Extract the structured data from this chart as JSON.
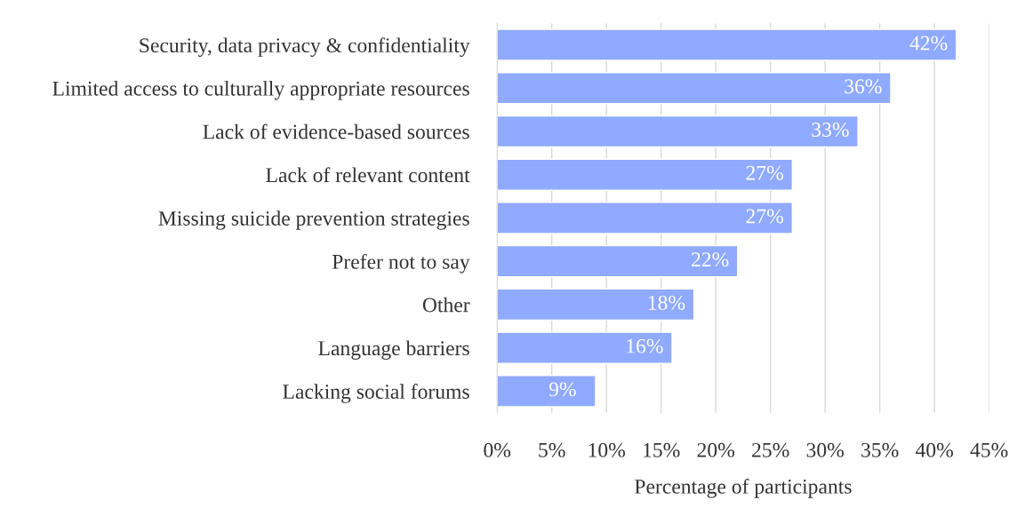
{
  "chart_data": {
    "type": "bar",
    "orientation": "horizontal",
    "xlabel": "Percentage of participants",
    "categories": [
      "Security, data privacy & confidentiality",
      "Limited access to culturally appropriate resources",
      "Lack of evidence-based sources",
      "Lack of relevant content",
      "Missing suicide prevention strategies",
      "Prefer not to say",
      "Other",
      "Language barriers",
      "Lacking social forums"
    ],
    "values": [
      42,
      36,
      33,
      27,
      27,
      22,
      18,
      16,
      9
    ],
    "value_labels": [
      "42%",
      "36%",
      "33%",
      "27%",
      "27%",
      "22%",
      "18%",
      "16%",
      "9%"
    ],
    "color": "#8faaff",
    "xlim": [
      0,
      45
    ],
    "xticks": [
      {
        "value": 0,
        "label": "0%"
      },
      {
        "value": 5,
        "label": "5%"
      },
      {
        "value": 10,
        "label": "10%"
      },
      {
        "value": 15,
        "label": "15%"
      },
      {
        "value": 20,
        "label": "20%"
      },
      {
        "value": 25,
        "label": "25%"
      },
      {
        "value": 30,
        "label": "30%"
      },
      {
        "value": 35,
        "label": "35%"
      },
      {
        "value": 40,
        "label": "40%"
      },
      {
        "value": 45,
        "label": "45%"
      }
    ],
    "grid": "x"
  }
}
